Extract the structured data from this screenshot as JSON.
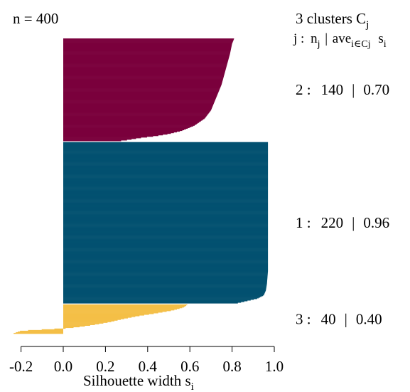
{
  "chart_data": {
    "type": "silhouette",
    "n_label": "n = 400",
    "header_line1": {
      "text": "3  clusters  C",
      "sub": "j"
    },
    "header_line2": {
      "j": "j :",
      "n": "n",
      "n_sub": "j",
      "bar": "|",
      "ave": "ave",
      "ave_sub": "i∈Cj",
      "s": "s",
      "s_sub": "i"
    },
    "xlabel": {
      "text": "Silhouette width s",
      "sub": "i"
    },
    "x_ticks": [
      -0.2,
      0.0,
      0.2,
      0.4,
      0.6,
      0.8,
      1.0
    ],
    "x_tick_labels": [
      "-0.2",
      "0.0",
      "0.2",
      "0.4",
      "0.6",
      "0.8",
      "1.0"
    ],
    "xlim": [
      -0.25,
      1.0
    ],
    "clusters": [
      {
        "id": 2,
        "label": "2 :",
        "n": 140,
        "n_text": "140",
        "sep": "|",
        "ave_text": "0.70",
        "color": "#7a003c",
        "profile": [
          [
            0,
            0.81
          ],
          [
            0.05,
            0.8
          ],
          [
            0.15,
            0.79
          ],
          [
            0.3,
            0.77
          ],
          [
            0.45,
            0.75
          ],
          [
            0.6,
            0.72
          ],
          [
            0.7,
            0.7
          ],
          [
            0.78,
            0.67
          ],
          [
            0.85,
            0.62
          ],
          [
            0.9,
            0.56
          ],
          [
            0.93,
            0.5
          ],
          [
            0.95,
            0.44
          ],
          [
            0.97,
            0.36
          ],
          [
            0.99,
            0.3
          ],
          [
            1,
            0.26
          ]
        ]
      },
      {
        "id": 1,
        "label": "1 :",
        "n": 220,
        "n_text": "220",
        "sep": "|",
        "ave_text": "0.96",
        "color": "#035170",
        "profile": [
          [
            0,
            0.97
          ],
          [
            0.5,
            0.97
          ],
          [
            0.8,
            0.97
          ],
          [
            0.88,
            0.965
          ],
          [
            0.92,
            0.96
          ],
          [
            0.95,
            0.95
          ],
          [
            0.97,
            0.92
          ],
          [
            1,
            0.82
          ]
        ]
      },
      {
        "id": 3,
        "label": "3 :",
        "n": 40,
        "n_text": "40",
        "sep": "|",
        "ave_text": "0.40",
        "color": "#f4bf47",
        "profile": [
          [
            0,
            0.59
          ],
          [
            0.1,
            0.57
          ],
          [
            0.2,
            0.52
          ],
          [
            0.3,
            0.44
          ],
          [
            0.4,
            0.35
          ],
          [
            0.5,
            0.28
          ],
          [
            0.6,
            0.22
          ],
          [
            0.7,
            0.14
          ],
          [
            0.78,
            0.06
          ],
          [
            0.82,
            0.0
          ],
          [
            0.87,
            -0.12
          ],
          [
            0.9,
            -0.2
          ],
          [
            1,
            -0.24
          ]
        ]
      }
    ]
  }
}
